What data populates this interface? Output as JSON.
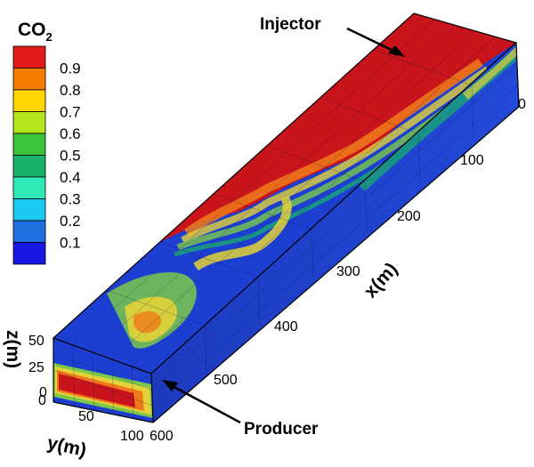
{
  "legend": {
    "title_main": "CO",
    "title_sub": "2",
    "levels": [
      {
        "label": "0.9",
        "color": "#e31a1c"
      },
      {
        "label": "0.8",
        "color": "#f57c00"
      },
      {
        "label": "0.7",
        "color": "#ffd400"
      },
      {
        "label": "0.6",
        "color": "#b5e61d"
      },
      {
        "label": "0.5",
        "color": "#3cc43c"
      },
      {
        "label": "0.4",
        "color": "#18b26a"
      },
      {
        "label": "0.3",
        "color": "#2ee8b6"
      },
      {
        "label": "0.2",
        "color": "#19c9ef"
      },
      {
        "label": "0.1",
        "color": "#1e6fe0"
      },
      {
        "label": "",
        "color": "#1717e6"
      }
    ]
  },
  "annotations": {
    "injector": "Injector",
    "producer": "Producer"
  },
  "axes": {
    "x": {
      "label": "x(m)",
      "ticks": [
        "0",
        "100",
        "200",
        "300",
        "400",
        "500",
        "600"
      ]
    },
    "y": {
      "label": "y(m)",
      "ticks": [
        "0",
        "50",
        "100"
      ]
    },
    "z": {
      "label": "z(m)",
      "ticks": [
        "0",
        "25",
        "50"
      ]
    }
  },
  "colors": {
    "co2_high": "#c8141a",
    "co2_mid_orange": "#f07a1a",
    "co2_mid_yellow": "#e3d23a",
    "co2_green": "#7cc94a",
    "co2_low": "#1d3fd1"
  }
}
